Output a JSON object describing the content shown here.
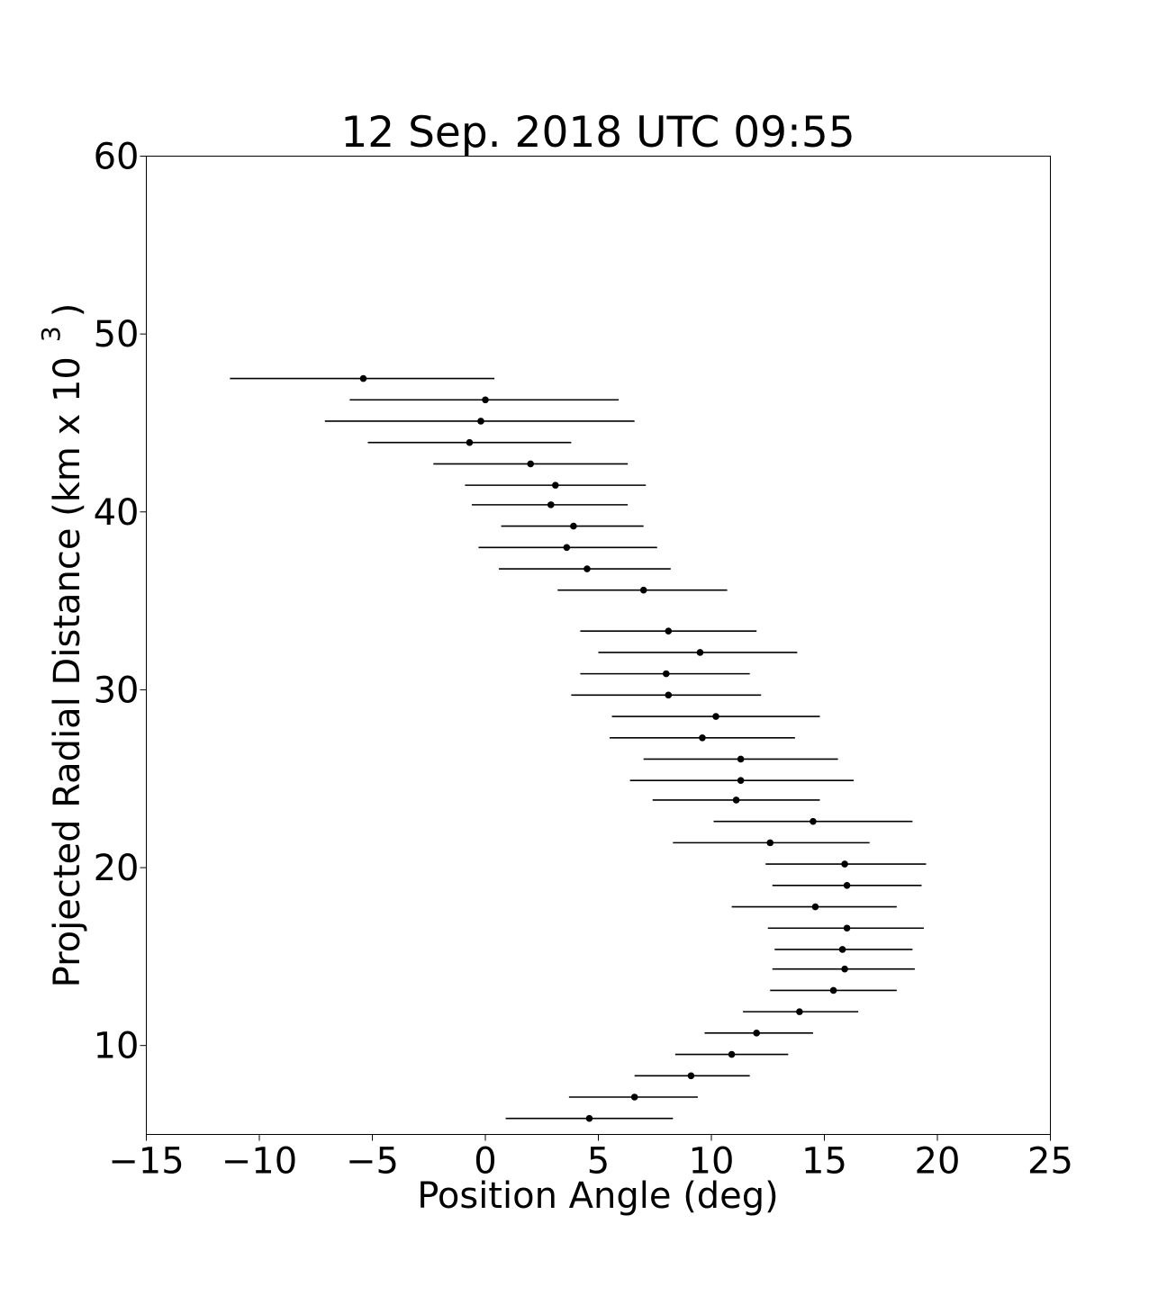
{
  "chart_data": {
    "type": "scatter",
    "title": "12 Sep. 2018 UTC 09:55",
    "xlabel": "Position Angle (deg)",
    "ylabel": "Projected Radial Distance (km x 10",
    "ylabel_superscript": "3",
    "ylabel_close": ")",
    "xlim": [
      -15,
      25
    ],
    "ylim": [
      5,
      60
    ],
    "xticks": [
      "−15",
      "−10",
      "−5",
      "0",
      "5",
      "10",
      "15",
      "20",
      "25"
    ],
    "yticks": [
      "10",
      "20",
      "30",
      "40",
      "50",
      "60"
    ],
    "grid": false,
    "marker_color": "#000000",
    "errorbar_color": "#000000",
    "series": [
      {
        "points": [
          {
            "x": -5.4,
            "y": 47.5,
            "xerr_low": -11.3,
            "xerr_high": 0.4
          },
          {
            "x": 0.0,
            "y": 46.3,
            "xerr_low": -6.0,
            "xerr_high": 5.9
          },
          {
            "x": -0.2,
            "y": 45.1,
            "xerr_low": -7.1,
            "xerr_high": 6.6
          },
          {
            "x": -0.7,
            "y": 43.9,
            "xerr_low": -5.2,
            "xerr_high": 3.8
          },
          {
            "x": 2.0,
            "y": 42.7,
            "xerr_low": -2.3,
            "xerr_high": 6.3
          },
          {
            "x": 3.1,
            "y": 41.5,
            "xerr_low": -0.9,
            "xerr_high": 7.1
          },
          {
            "x": 2.9,
            "y": 40.4,
            "xerr_low": -0.6,
            "xerr_high": 6.3
          },
          {
            "x": 3.9,
            "y": 39.2,
            "xerr_low": 0.7,
            "xerr_high": 7.0
          },
          {
            "x": 3.6,
            "y": 38.0,
            "xerr_low": -0.3,
            "xerr_high": 7.6
          },
          {
            "x": 4.5,
            "y": 36.8,
            "xerr_low": 0.6,
            "xerr_high": 8.2
          },
          {
            "x": 7.0,
            "y": 35.6,
            "xerr_low": 3.2,
            "xerr_high": 10.7
          },
          {
            "x": 8.1,
            "y": 33.3,
            "xerr_low": 4.2,
            "xerr_high": 12.0
          },
          {
            "x": 9.5,
            "y": 32.1,
            "xerr_low": 5.0,
            "xerr_high": 13.8
          },
          {
            "x": 8.0,
            "y": 30.9,
            "xerr_low": 4.2,
            "xerr_high": 11.7
          },
          {
            "x": 8.1,
            "y": 29.7,
            "xerr_low": 3.8,
            "xerr_high": 12.2
          },
          {
            "x": 10.2,
            "y": 28.5,
            "xerr_low": 5.6,
            "xerr_high": 14.8
          },
          {
            "x": 9.6,
            "y": 27.3,
            "xerr_low": 5.5,
            "xerr_high": 13.7
          },
          {
            "x": 11.3,
            "y": 26.1,
            "xerr_low": 7.0,
            "xerr_high": 15.6
          },
          {
            "x": 11.3,
            "y": 24.9,
            "xerr_low": 6.4,
            "xerr_high": 16.3
          },
          {
            "x": 11.1,
            "y": 23.8,
            "xerr_low": 7.4,
            "xerr_high": 14.8
          },
          {
            "x": 14.5,
            "y": 22.6,
            "xerr_low": 10.1,
            "xerr_high": 18.9
          },
          {
            "x": 12.6,
            "y": 21.4,
            "xerr_low": 8.3,
            "xerr_high": 17.0
          },
          {
            "x": 15.9,
            "y": 20.2,
            "xerr_low": 12.4,
            "xerr_high": 19.5
          },
          {
            "x": 16.0,
            "y": 19.0,
            "xerr_low": 12.7,
            "xerr_high": 19.3
          },
          {
            "x": 14.6,
            "y": 17.8,
            "xerr_low": 10.9,
            "xerr_high": 18.2
          },
          {
            "x": 16.0,
            "y": 16.6,
            "xerr_low": 12.5,
            "xerr_high": 19.4
          },
          {
            "x": 15.8,
            "y": 15.4,
            "xerr_low": 12.8,
            "xerr_high": 18.9
          },
          {
            "x": 15.9,
            "y": 14.3,
            "xerr_low": 12.7,
            "xerr_high": 19.0
          },
          {
            "x": 15.4,
            "y": 13.1,
            "xerr_low": 12.6,
            "xerr_high": 18.2
          },
          {
            "x": 13.9,
            "y": 11.9,
            "xerr_low": 11.4,
            "xerr_high": 16.5
          },
          {
            "x": 12.0,
            "y": 10.7,
            "xerr_low": 9.7,
            "xerr_high": 14.5
          },
          {
            "x": 10.9,
            "y": 9.5,
            "xerr_low": 8.4,
            "xerr_high": 13.4
          },
          {
            "x": 9.1,
            "y": 8.3,
            "xerr_low": 6.6,
            "xerr_high": 11.7
          },
          {
            "x": 6.6,
            "y": 7.1,
            "xerr_low": 3.7,
            "xerr_high": 9.4
          },
          {
            "x": 4.6,
            "y": 5.9,
            "xerr_low": 0.9,
            "xerr_high": 8.3
          }
        ]
      }
    ]
  }
}
